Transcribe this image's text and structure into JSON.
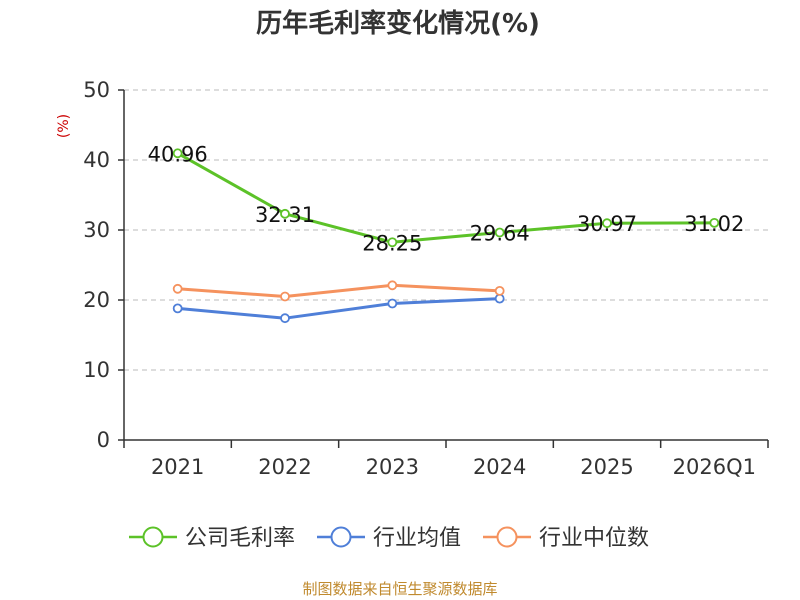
{
  "chart_data": {
    "type": "line",
    "title": "历年毛利率变化情况(%)",
    "ylabel": "(%)",
    "categories": [
      "2021",
      "2022",
      "2023",
      "2024",
      "2025",
      "2026Q1"
    ],
    "ylim": [
      0,
      50
    ],
    "yticks": [
      0,
      10,
      20,
      30,
      40,
      50
    ],
    "grid": true,
    "legend_position": "bottom",
    "series": [
      {
        "name": "公司毛利率",
        "color": "#5cc228",
        "values": [
          40.96,
          32.31,
          28.25,
          29.64,
          30.97,
          31.02
        ],
        "labels": [
          "40.96",
          "32.31",
          "28.25",
          "29.64",
          "30.97",
          "31.02"
        ]
      },
      {
        "name": "行业均值",
        "color": "#4f7fd8",
        "values": [
          18.8,
          17.4,
          19.5,
          20.2,
          null,
          null
        ]
      },
      {
        "name": "行业中位数",
        "color": "#f5925e",
        "values": [
          21.6,
          20.5,
          22.1,
          21.3,
          null,
          null
        ]
      }
    ]
  },
  "source": "制图数据来自恒生聚源数据库",
  "colors": {
    "axis": "#333333",
    "grid": "#bbbbbb",
    "unit": "#cc0000",
    "source": "#c08a2e"
  }
}
